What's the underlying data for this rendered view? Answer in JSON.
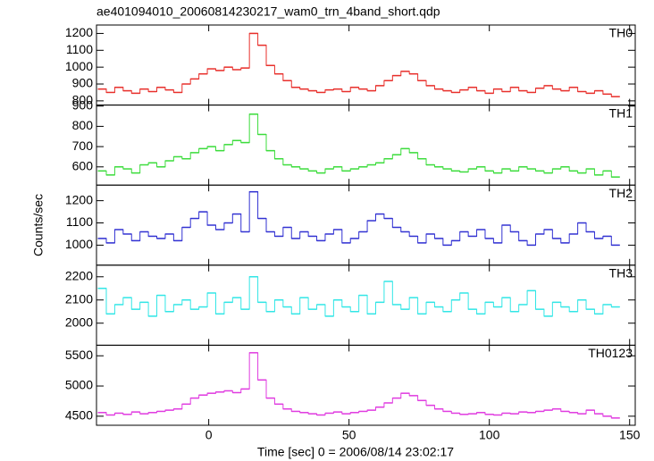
{
  "chart_data": [
    {
      "type": "line",
      "title": "ae401094010_20060814230217_wam0_trn_4band_short.qdp",
      "x": [
        -38,
        -35,
        -32,
        -29,
        -26,
        -23,
        -20,
        -17,
        -14,
        -11,
        -8,
        -5,
        -2,
        1,
        4,
        7,
        10,
        13,
        16,
        19,
        22,
        25,
        28,
        31,
        34,
        37,
        40,
        43,
        46,
        49,
        52,
        55,
        58,
        61,
        64,
        67,
        70,
        73,
        76,
        79,
        82,
        85,
        88,
        91,
        94,
        97,
        100,
        103,
        106,
        109,
        112,
        115,
        118,
        121,
        124,
        127,
        130,
        133,
        136,
        139,
        142,
        145
      ],
      "series": [
        {
          "name": "TH0",
          "color": "#e8302c",
          "values": [
            870,
            850,
            880,
            860,
            845,
            870,
            855,
            880,
            865,
            850,
            900,
            930,
            960,
            990,
            980,
            1000,
            985,
            995,
            1200,
            1130,
            1010,
            960,
            920,
            880,
            870,
            860,
            850,
            865,
            870,
            855,
            880,
            870,
            860,
            890,
            920,
            950,
            975,
            960,
            920,
            890,
            870,
            860,
            850,
            865,
            880,
            860,
            845,
            870,
            855,
            880,
            860,
            850,
            875,
            890,
            870,
            860,
            880,
            855,
            845,
            860,
            840,
            825
          ]
        }
      ],
      "xlim": [
        -40,
        152
      ],
      "xticks": [
        0,
        50,
        100,
        150
      ],
      "ylim": [
        775,
        1250
      ],
      "yticks": [
        800,
        900,
        1000,
        1100,
        1200
      ]
    },
    {
      "type": "line",
      "x": [
        -38,
        -35,
        -32,
        -29,
        -26,
        -23,
        -20,
        -17,
        -14,
        -11,
        -8,
        -5,
        -2,
        1,
        4,
        7,
        10,
        13,
        16,
        19,
        22,
        25,
        28,
        31,
        34,
        37,
        40,
        43,
        46,
        49,
        52,
        55,
        58,
        61,
        64,
        67,
        70,
        73,
        76,
        79,
        82,
        85,
        88,
        91,
        94,
        97,
        100,
        103,
        106,
        109,
        112,
        115,
        118,
        121,
        124,
        127,
        130,
        133,
        136,
        139,
        142,
        145
      ],
      "series": [
        {
          "name": "TH1",
          "color": "#3cdc3c",
          "values": [
            580,
            560,
            600,
            590,
            570,
            610,
            620,
            600,
            630,
            650,
            640,
            670,
            690,
            700,
            680,
            710,
            730,
            720,
            860,
            760,
            680,
            640,
            610,
            600,
            590,
            580,
            570,
            590,
            600,
            580,
            590,
            600,
            610,
            620,
            640,
            660,
            690,
            670,
            640,
            610,
            600,
            590,
            580,
            575,
            590,
            600,
            580,
            570,
            590,
            580,
            600,
            590,
            580,
            570,
            590,
            600,
            580,
            570,
            590,
            560,
            580,
            550
          ]
        }
      ],
      "xlim": [
        -40,
        152
      ],
      "xticks": [
        0,
        50,
        100,
        150
      ],
      "ylim": [
        510,
        905
      ],
      "yticks": [
        600,
        700,
        800,
        900
      ]
    },
    {
      "type": "line",
      "ylabel": "Counts/sec",
      "x": [
        -38,
        -35,
        -32,
        -29,
        -26,
        -23,
        -20,
        -17,
        -14,
        -11,
        -8,
        -5,
        -2,
        1,
        4,
        7,
        10,
        13,
        16,
        19,
        22,
        25,
        28,
        31,
        34,
        37,
        40,
        43,
        46,
        49,
        52,
        55,
        58,
        61,
        64,
        67,
        70,
        73,
        76,
        79,
        82,
        85,
        88,
        91,
        94,
        97,
        100,
        103,
        106,
        109,
        112,
        115,
        118,
        121,
        124,
        127,
        130,
        133,
        136,
        139,
        142,
        145
      ],
      "series": [
        {
          "name": "TH2",
          "color": "#3232d2",
          "values": [
            1030,
            1010,
            1070,
            1050,
            1020,
            1060,
            1040,
            1030,
            1050,
            1020,
            1080,
            1120,
            1150,
            1090,
            1070,
            1100,
            1140,
            1060,
            1240,
            1120,
            1060,
            1040,
            1080,
            1030,
            1060,
            1040,
            1020,
            1050,
            1070,
            1010,
            1030,
            1060,
            1110,
            1140,
            1120,
            1080,
            1060,
            1040,
            1010,
            1050,
            1030,
            1000,
            1020,
            1060,
            1040,
            1070,
            1030,
            1010,
            1090,
            1060,
            1020,
            1000,
            1050,
            1070,
            1030,
            1010,
            1050,
            1100,
            1060,
            1030,
            1040,
            1000
          ]
        }
      ],
      "xlim": [
        -40,
        152
      ],
      "xticks": [
        0,
        50,
        100,
        150
      ],
      "ylim": [
        910,
        1270
      ],
      "yticks": [
        1000,
        1100,
        1200
      ]
    },
    {
      "type": "line",
      "x": [
        -38,
        -35,
        -32,
        -29,
        -26,
        -23,
        -20,
        -17,
        -14,
        -11,
        -8,
        -5,
        -2,
        1,
        4,
        7,
        10,
        13,
        16,
        19,
        22,
        25,
        28,
        31,
        34,
        37,
        40,
        43,
        46,
        49,
        52,
        55,
        58,
        61,
        64,
        67,
        70,
        73,
        76,
        79,
        82,
        85,
        88,
        91,
        94,
        97,
        100,
        103,
        106,
        109,
        112,
        115,
        118,
        121,
        124,
        127,
        130,
        133,
        136,
        139,
        142,
        145
      ],
      "series": [
        {
          "name": "TH3",
          "color": "#32e6e6",
          "values": [
            2150,
            2040,
            2080,
            2110,
            2060,
            2090,
            2030,
            2120,
            2050,
            2080,
            2100,
            2060,
            2070,
            2130,
            2040,
            2090,
            2110,
            2060,
            2200,
            2090,
            2050,
            2100,
            2070,
            2040,
            2110,
            2060,
            2080,
            2030,
            2100,
            2070,
            2050,
            2120,
            2040,
            2090,
            2180,
            2080,
            2060,
            2110,
            2040,
            2090,
            2070,
            2050,
            2100,
            2130,
            2060,
            2040,
            2090,
            2070,
            2110,
            2050,
            2080,
            2140,
            2060,
            2030,
            2090,
            2070,
            2050,
            2100,
            2060,
            2040,
            2080,
            2070
          ]
        }
      ],
      "xlim": [
        -40,
        152
      ],
      "xticks": [
        0,
        50,
        100,
        150
      ],
      "ylim": [
        1905,
        2250
      ],
      "yticks": [
        2000,
        2100,
        2200
      ]
    },
    {
      "type": "line",
      "xlabel": "Time [sec] 0 = 2006/08/14 23:02:17",
      "x": [
        -38,
        -35,
        -32,
        -29,
        -26,
        -23,
        -20,
        -17,
        -14,
        -11,
        -8,
        -5,
        -2,
        1,
        4,
        7,
        10,
        13,
        16,
        19,
        22,
        25,
        28,
        31,
        34,
        37,
        40,
        43,
        46,
        49,
        52,
        55,
        58,
        61,
        64,
        67,
        70,
        73,
        76,
        79,
        82,
        85,
        88,
        91,
        94,
        97,
        100,
        103,
        106,
        109,
        112,
        115,
        118,
        121,
        124,
        127,
        130,
        133,
        136,
        139,
        142,
        145
      ],
      "series": [
        {
          "name": "TH0123",
          "color": "#e03ce0",
          "values": [
            4560,
            4520,
            4550,
            4530,
            4570,
            4540,
            4560,
            4580,
            4600,
            4620,
            4700,
            4800,
            4850,
            4880,
            4900,
            4920,
            4890,
            4950,
            5550,
            5100,
            4800,
            4700,
            4620,
            4580,
            4560,
            4540,
            4520,
            4550,
            4570,
            4540,
            4560,
            4580,
            4600,
            4650,
            4720,
            4800,
            4880,
            4840,
            4760,
            4680,
            4620,
            4580,
            4550,
            4530,
            4540,
            4560,
            4530,
            4520,
            4550,
            4540,
            4570,
            4560,
            4580,
            4600,
            4620,
            4580,
            4560,
            4540,
            4600,
            4540,
            4500,
            4470
          ]
        }
      ],
      "xlim": [
        -40,
        152
      ],
      "xticks": [
        0,
        50,
        100,
        150
      ],
      "ylim": [
        4350,
        5675
      ],
      "yticks": [
        4500,
        5000,
        5500
      ]
    }
  ]
}
